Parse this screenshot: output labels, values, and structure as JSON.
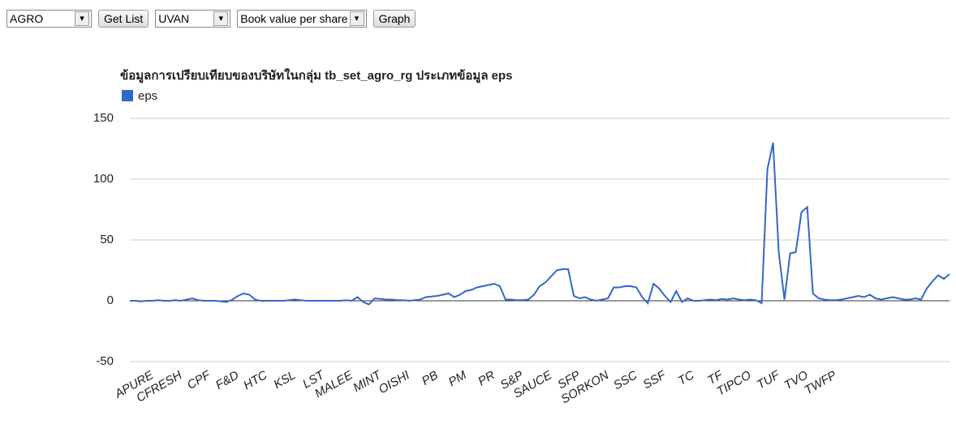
{
  "controls": {
    "group_select": "AGRO",
    "get_list_button": "Get List",
    "company_select": "UVAN",
    "metric_select": "Book value per share",
    "graph_button": "Graph"
  },
  "chart_data": {
    "type": "line",
    "title": "ข้อมูลการเปรียบเทียบของบริษัทในกลุ่ม tb_set_agro_rg ประเภทข้อมูล eps",
    "categories": [
      null,
      null,
      null,
      null,
      "APURE",
      null,
      null,
      null,
      null,
      "CFRESH",
      null,
      null,
      null,
      null,
      "CPF",
      null,
      null,
      null,
      null,
      "F&D",
      null,
      null,
      null,
      null,
      "HTC",
      null,
      null,
      null,
      null,
      "KSL",
      null,
      null,
      null,
      null,
      "LST",
      null,
      null,
      null,
      null,
      "MALEE",
      null,
      null,
      null,
      null,
      "MINT",
      null,
      null,
      null,
      null,
      "OISHI",
      null,
      null,
      null,
      null,
      "PB",
      null,
      null,
      null,
      null,
      "PM",
      null,
      null,
      null,
      null,
      "PR",
      null,
      null,
      null,
      null,
      "S&P",
      null,
      null,
      null,
      null,
      "SAUCE",
      null,
      null,
      null,
      null,
      "SFP",
      null,
      null,
      null,
      null,
      "SORKON",
      null,
      null,
      null,
      null,
      "SSC",
      null,
      null,
      null,
      null,
      "SSF",
      null,
      null,
      null,
      null,
      "TC",
      null,
      null,
      null,
      null,
      "TF",
      null,
      null,
      null,
      null,
      "TIPCO",
      null,
      null,
      null,
      null,
      "TUF",
      null,
      null,
      null,
      null,
      "TVO",
      null,
      null,
      null,
      null,
      "TWFP",
      null,
      null,
      null,
      null,
      null,
      null,
      null,
      null,
      null,
      null,
      null,
      null,
      null,
      null,
      null,
      null,
      null,
      null,
      null,
      null
    ],
    "series": [
      {
        "name": "eps",
        "color": "#3366cc",
        "values": [
          0,
          0,
          -0.5,
          0,
          0,
          0.5,
          0,
          0,
          0.5,
          0,
          1,
          2,
          0.5,
          0,
          0,
          0,
          -0.5,
          -1,
          1,
          4,
          6,
          5,
          1,
          0,
          0,
          0,
          0,
          0,
          0.5,
          1,
          0.5,
          0,
          0,
          0,
          0,
          0,
          0,
          0,
          0.5,
          0,
          3,
          -1,
          -3,
          2,
          1.5,
          1,
          1,
          0.5,
          0.5,
          0,
          0.5,
          1,
          3,
          3.5,
          4,
          5,
          6,
          3,
          5,
          8,
          9,
          11,
          12,
          13,
          14,
          12,
          1,
          1,
          0.5,
          0.5,
          1,
          5,
          12,
          15,
          20,
          25,
          26,
          26,
          4,
          2,
          3,
          1,
          0,
          1,
          2,
          11,
          11,
          12,
          12,
          11,
          3,
          -2,
          14,
          10,
          4,
          -1,
          8,
          -1,
          2,
          0,
          0,
          0.5,
          1,
          0.5,
          1.5,
          1,
          2,
          1,
          0.5,
          1,
          0.5,
          -2,
          108,
          130,
          40,
          1,
          39,
          40,
          73,
          77,
          6,
          2,
          1,
          0.5,
          0.5,
          1,
          2,
          3,
          4,
          3,
          5,
          2,
          1,
          2,
          3,
          2,
          1,
          1,
          2,
          1,
          10,
          16,
          21,
          18,
          22
        ]
      }
    ],
    "ylim": [
      -50,
      150
    ],
    "yticks": [
      -50,
      0,
      50,
      100,
      150
    ],
    "grid": true,
    "legend": "top-left"
  }
}
